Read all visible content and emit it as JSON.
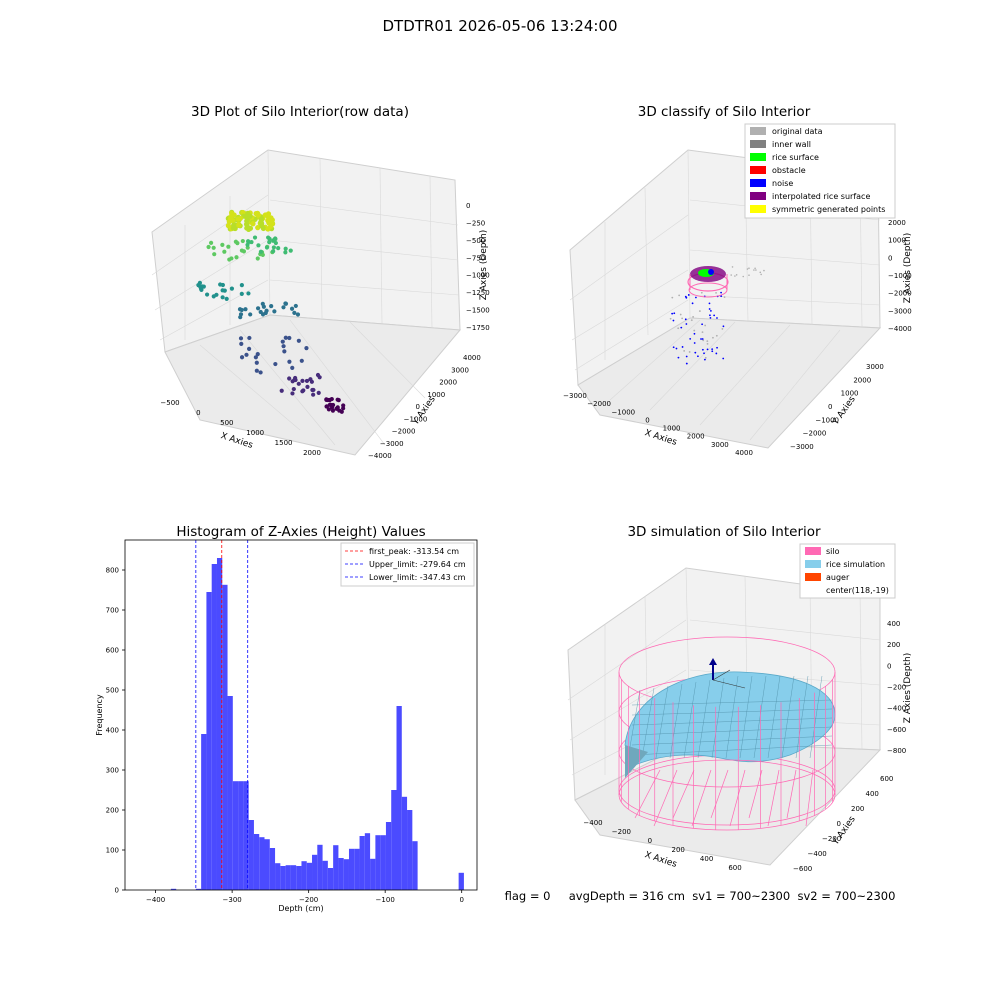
{
  "suptitle": "DTDTR01 2026-05-06 13:24:00",
  "footer": "flag = 0     avgDepth = 316 cm  sv1 = 700~2300  sv2 = 700~2300",
  "colors": {
    "rice_surface": "#00ff00",
    "obstacle": "#ff0000",
    "noise": "#0000ff",
    "interpolated": "#800080",
    "symmetric": "#ffff00",
    "original": "#b0b0b0",
    "inner_wall": "#808080",
    "silo": "#ff69b4",
    "rice_sim": "#87ceeb",
    "auger": "#ff4500",
    "hist_bar": "#4b4bff"
  },
  "chart_data": [
    {
      "type": "scatter",
      "title": "3D Plot of Silo Interior(row data)",
      "xlabel": "X Axies",
      "ylabel": "Y Axies",
      "zlabel": "Z Axies (Depth)",
      "xticks": [
        "−500",
        "0",
        "500",
        "1000",
        "1500",
        "2000"
      ],
      "yticks": [
        "−4000",
        "−3000",
        "−2000",
        "−1000",
        "0",
        "1000",
        "2000",
        "3000",
        "4000"
      ],
      "zticks": [
        "0",
        "−250",
        "−500",
        "−750",
        "−1000",
        "−1250",
        "−1500",
        "−1750"
      ]
    },
    {
      "type": "scatter",
      "title": "3D classify of Silo Interior",
      "xlabel": "X Axies",
      "ylabel": "Y Axies",
      "zlabel": "Z Axies (Depth)",
      "xticks": [
        "−3000",
        "−2000",
        "−1000",
        "0",
        "1000",
        "2000",
        "3000",
        "4000"
      ],
      "yticks": [
        "−3000",
        "−2000",
        "−1000",
        "0",
        "1000",
        "2000",
        "3000"
      ],
      "zticks": [
        "2000",
        "1000",
        "0",
        "−1000",
        "−2000",
        "−3000",
        "−4000"
      ],
      "legend": [
        "original data",
        "inner wall",
        "rice surface",
        "obstacle",
        "noise",
        "interpolated rice surface",
        "symmetric generated points"
      ],
      "legend_position": "top-right"
    },
    {
      "type": "bar",
      "title": "Histogram of Z-Axies (Height) Values",
      "xlabel": "Depth (cm)",
      "ylabel": "Frequency",
      "xlim": [
        -440,
        20
      ],
      "ylim": [
        0,
        875
      ],
      "xticks": [
        -400,
        -300,
        -200,
        -100,
        0
      ],
      "xtick_labels": [
        "−400",
        "−300",
        "−200",
        "−100",
        "0"
      ],
      "yticks": [
        0,
        100,
        200,
        300,
        400,
        500,
        600,
        700,
        800
      ],
      "bin_width": 6.9,
      "bins": [
        [
          -380.0,
          3
        ],
        [
          -347.4,
          3
        ],
        [
          -340.5,
          390
        ],
        [
          -333.6,
          745
        ],
        [
          -326.7,
          815
        ],
        [
          -319.8,
          830
        ],
        [
          -312.9,
          763
        ],
        [
          -306.0,
          485
        ],
        [
          -299.1,
          272
        ],
        [
          -292.2,
          272
        ],
        [
          -285.3,
          272
        ],
        [
          -278.4,
          175
        ],
        [
          -271.5,
          140
        ],
        [
          -264.6,
          132
        ],
        [
          -257.7,
          127
        ],
        [
          -250.8,
          105
        ],
        [
          -243.9,
          67
        ],
        [
          -237.0,
          60
        ],
        [
          -230.1,
          62
        ],
        [
          -223.2,
          62
        ],
        [
          -216.3,
          60
        ],
        [
          -209.4,
          72
        ],
        [
          -202.5,
          68
        ],
        [
          -195.6,
          88
        ],
        [
          -188.7,
          113
        ],
        [
          -181.8,
          73
        ],
        [
          -174.9,
          55
        ],
        [
          -168.0,
          112
        ],
        [
          -161.1,
          80
        ],
        [
          -154.2,
          77
        ],
        [
          -147.3,
          103
        ],
        [
          -140.4,
          103
        ],
        [
          -133.5,
          135
        ],
        [
          -126.6,
          142
        ],
        [
          -119.7,
          78
        ],
        [
          -112.8,
          137
        ],
        [
          -105.9,
          137
        ],
        [
          -99.0,
          170
        ],
        [
          -92.1,
          250
        ],
        [
          -85.2,
          460
        ],
        [
          -78.3,
          233
        ],
        [
          -71.4,
          200
        ],
        [
          -64.5,
          122
        ],
        [
          -4.0,
          43
        ]
      ],
      "lines": [
        {
          "label": "first_peak: -313.54 cm",
          "x": -313.54,
          "color": "#ff0000"
        },
        {
          "label": "Upper_limit: -279.64 cm",
          "x": -279.64,
          "color": "#0000ff"
        },
        {
          "label": "Lower_limit: -347.43 cm",
          "x": -347.43,
          "color": "#0000ff"
        }
      ],
      "legend_position": "top-right"
    },
    {
      "type": "scatter",
      "title": "3D simulation of Silo Interior",
      "xlabel": "X Axies",
      "ylabel": "Y Axies",
      "zlabel": "Z Axies (Depth)",
      "xticks": [
        "−400",
        "−200",
        "0",
        "200",
        "400",
        "600"
      ],
      "yticks": [
        "−600",
        "−400",
        "−200",
        "0",
        "200",
        "400",
        "600"
      ],
      "zticks": [
        "400",
        "200",
        "0",
        "−200",
        "−400",
        "−600",
        "−800"
      ],
      "legend": [
        "silo",
        "rice simulation",
        "auger",
        "center(118,-19)"
      ],
      "legend_position": "top-right"
    }
  ]
}
